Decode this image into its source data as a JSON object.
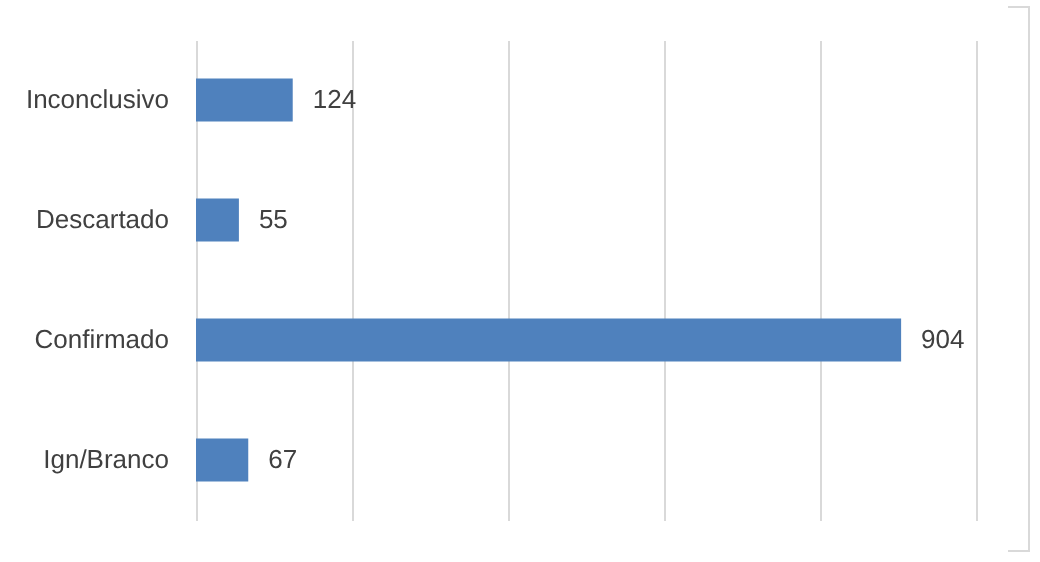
{
  "chart_data": {
    "type": "bar",
    "orientation": "horizontal",
    "categories": [
      "Inconclusivo",
      "Descartado",
      "Confirmado",
      "Ign/Branco"
    ],
    "values": [
      124,
      55,
      904,
      67
    ],
    "color": "#4f81bd",
    "xlim": [
      0,
      1000
    ],
    "xticks": [
      {
        "value": 0,
        "label": null
      },
      {
        "value": 200,
        "label": null
      },
      {
        "value": 400,
        "label": null
      },
      {
        "value": 600,
        "label": null
      },
      {
        "value": 800,
        "label": null
      },
      {
        "value": 1000,
        "label": null
      }
    ],
    "grid": "x",
    "tick_labels": "y",
    "data_labels": true
  }
}
